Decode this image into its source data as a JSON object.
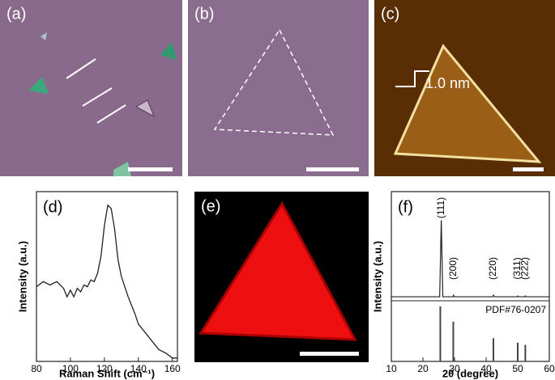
{
  "panels": [
    {
      "label": "(a)"
    },
    {
      "label": "(b)"
    },
    {
      "label": "(c)",
      "annotation": "1.0 nm"
    },
    {
      "label": "(e)"
    }
  ],
  "chart_data": [
    {
      "type": "line",
      "label": "(d)",
      "x_label": "Raman Shift (cm⁻¹)",
      "y_label": "Intensity (a.u.)",
      "x": [
        80,
        84,
        88,
        92,
        96,
        98,
        100,
        102,
        104,
        106,
        108,
        110,
        112,
        114,
        116,
        118,
        120,
        122,
        124,
        126,
        128,
        130,
        132,
        134,
        136,
        138,
        140,
        144,
        148,
        152,
        156,
        160,
        163
      ],
      "values": [
        0.44,
        0.47,
        0.45,
        0.47,
        0.43,
        0.38,
        0.42,
        0.38,
        0.43,
        0.41,
        0.45,
        0.44,
        0.48,
        0.47,
        0.52,
        0.62,
        0.8,
        0.92,
        0.9,
        0.78,
        0.6,
        0.5,
        0.44,
        0.38,
        0.33,
        0.28,
        0.22,
        0.17,
        0.12,
        0.07,
        0.05,
        0.02,
        0.02
      ],
      "color": "#222222",
      "xlim": [
        80,
        163
      ],
      "xticks": [
        80,
        100,
        120,
        140,
        160
      ],
      "ylim": [
        0,
        1
      ]
    },
    {
      "type": "xrd",
      "label": "(f)",
      "x_label": "2θ (degree)",
      "y_label": "Intensity (a.u.)",
      "x": [
        10,
        25.3,
        25.8,
        26.3,
        29.5,
        29.7,
        29.9,
        42.0,
        42.3,
        42.6,
        49.8,
        50.0,
        50.2,
        52.2,
        52.4,
        52.6,
        60
      ],
      "values": [
        1,
        1,
        100,
        1,
        1,
        3,
        1,
        1,
        3,
        1,
        1,
        2,
        1,
        1,
        2,
        1,
        1
      ],
      "peaks": [
        {
          "x": 25.8,
          "label": "(111)"
        },
        {
          "x": 29.7,
          "label": "(200)"
        },
        {
          "x": 42.3,
          "label": "(220)"
        },
        {
          "x": 50.0,
          "label": "(311)"
        },
        {
          "x": 52.4,
          "label": "(222)"
        }
      ],
      "reference": {
        "name": "PDF#76-0207",
        "x": [
          25.5,
          29.6,
          42.3,
          50.0,
          52.4
        ],
        "values": [
          100,
          72,
          42,
          34,
          30
        ],
        "ylim": [
          0,
          110
        ]
      },
      "color": "#222222",
      "xlim": [
        10,
        60
      ],
      "xticks": [
        10,
        20,
        30,
        40,
        50,
        60
      ],
      "ylim": [
        0,
        110
      ]
    }
  ]
}
